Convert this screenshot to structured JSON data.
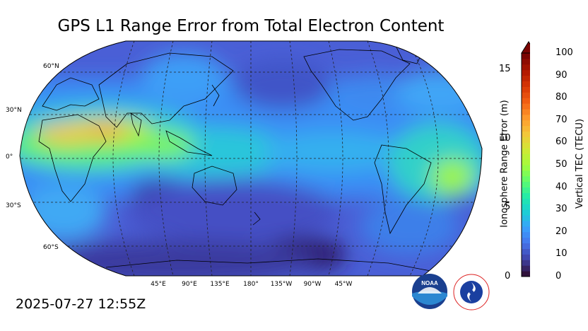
{
  "title": "GPS L1 Range Error from Total Electron Content",
  "timestamp": "2025-07-27 12:55Z",
  "map": {
    "projection": "robinson",
    "central_longitude": 180,
    "lat_labels": [
      "60°N",
      "30°N",
      "0°",
      "30°S",
      "60°S"
    ],
    "lon_labels": [
      "45°E",
      "90°E",
      "135°E",
      "180°",
      "135°W",
      "90°W",
      "45°W"
    ]
  },
  "colorbar": {
    "colormap": "turbo",
    "extend": "max",
    "right_label": "Vertical TEC (TECU)",
    "right_ticks": [
      "0",
      "10",
      "20",
      "30",
      "40",
      "50",
      "60",
      "70",
      "80",
      "90",
      "100"
    ],
    "left_label": "Ionosphere Range Error (m)",
    "left_ticks": [
      "0",
      "5",
      "10",
      "15"
    ],
    "colors": {
      "c0": "#30123b",
      "c10": "#4145ab",
      "c20": "#4675ed",
      "c30": "#39a2fc",
      "c40": "#1bcfd4",
      "c50": "#24eca6",
      "c60": "#61fc6c",
      "c70": "#a4fc3b",
      "c80": "#d1e834",
      "c90": "#f3c63a",
      "c100": "#fe9b2d",
      "c110": "#f36315",
      "c120": "#d93806",
      "c130": "#b11901",
      "c140": "#7a0402"
    }
  },
  "logos": {
    "noaa": "noaa-logo",
    "nws": "national-weather-service-logo"
  }
}
